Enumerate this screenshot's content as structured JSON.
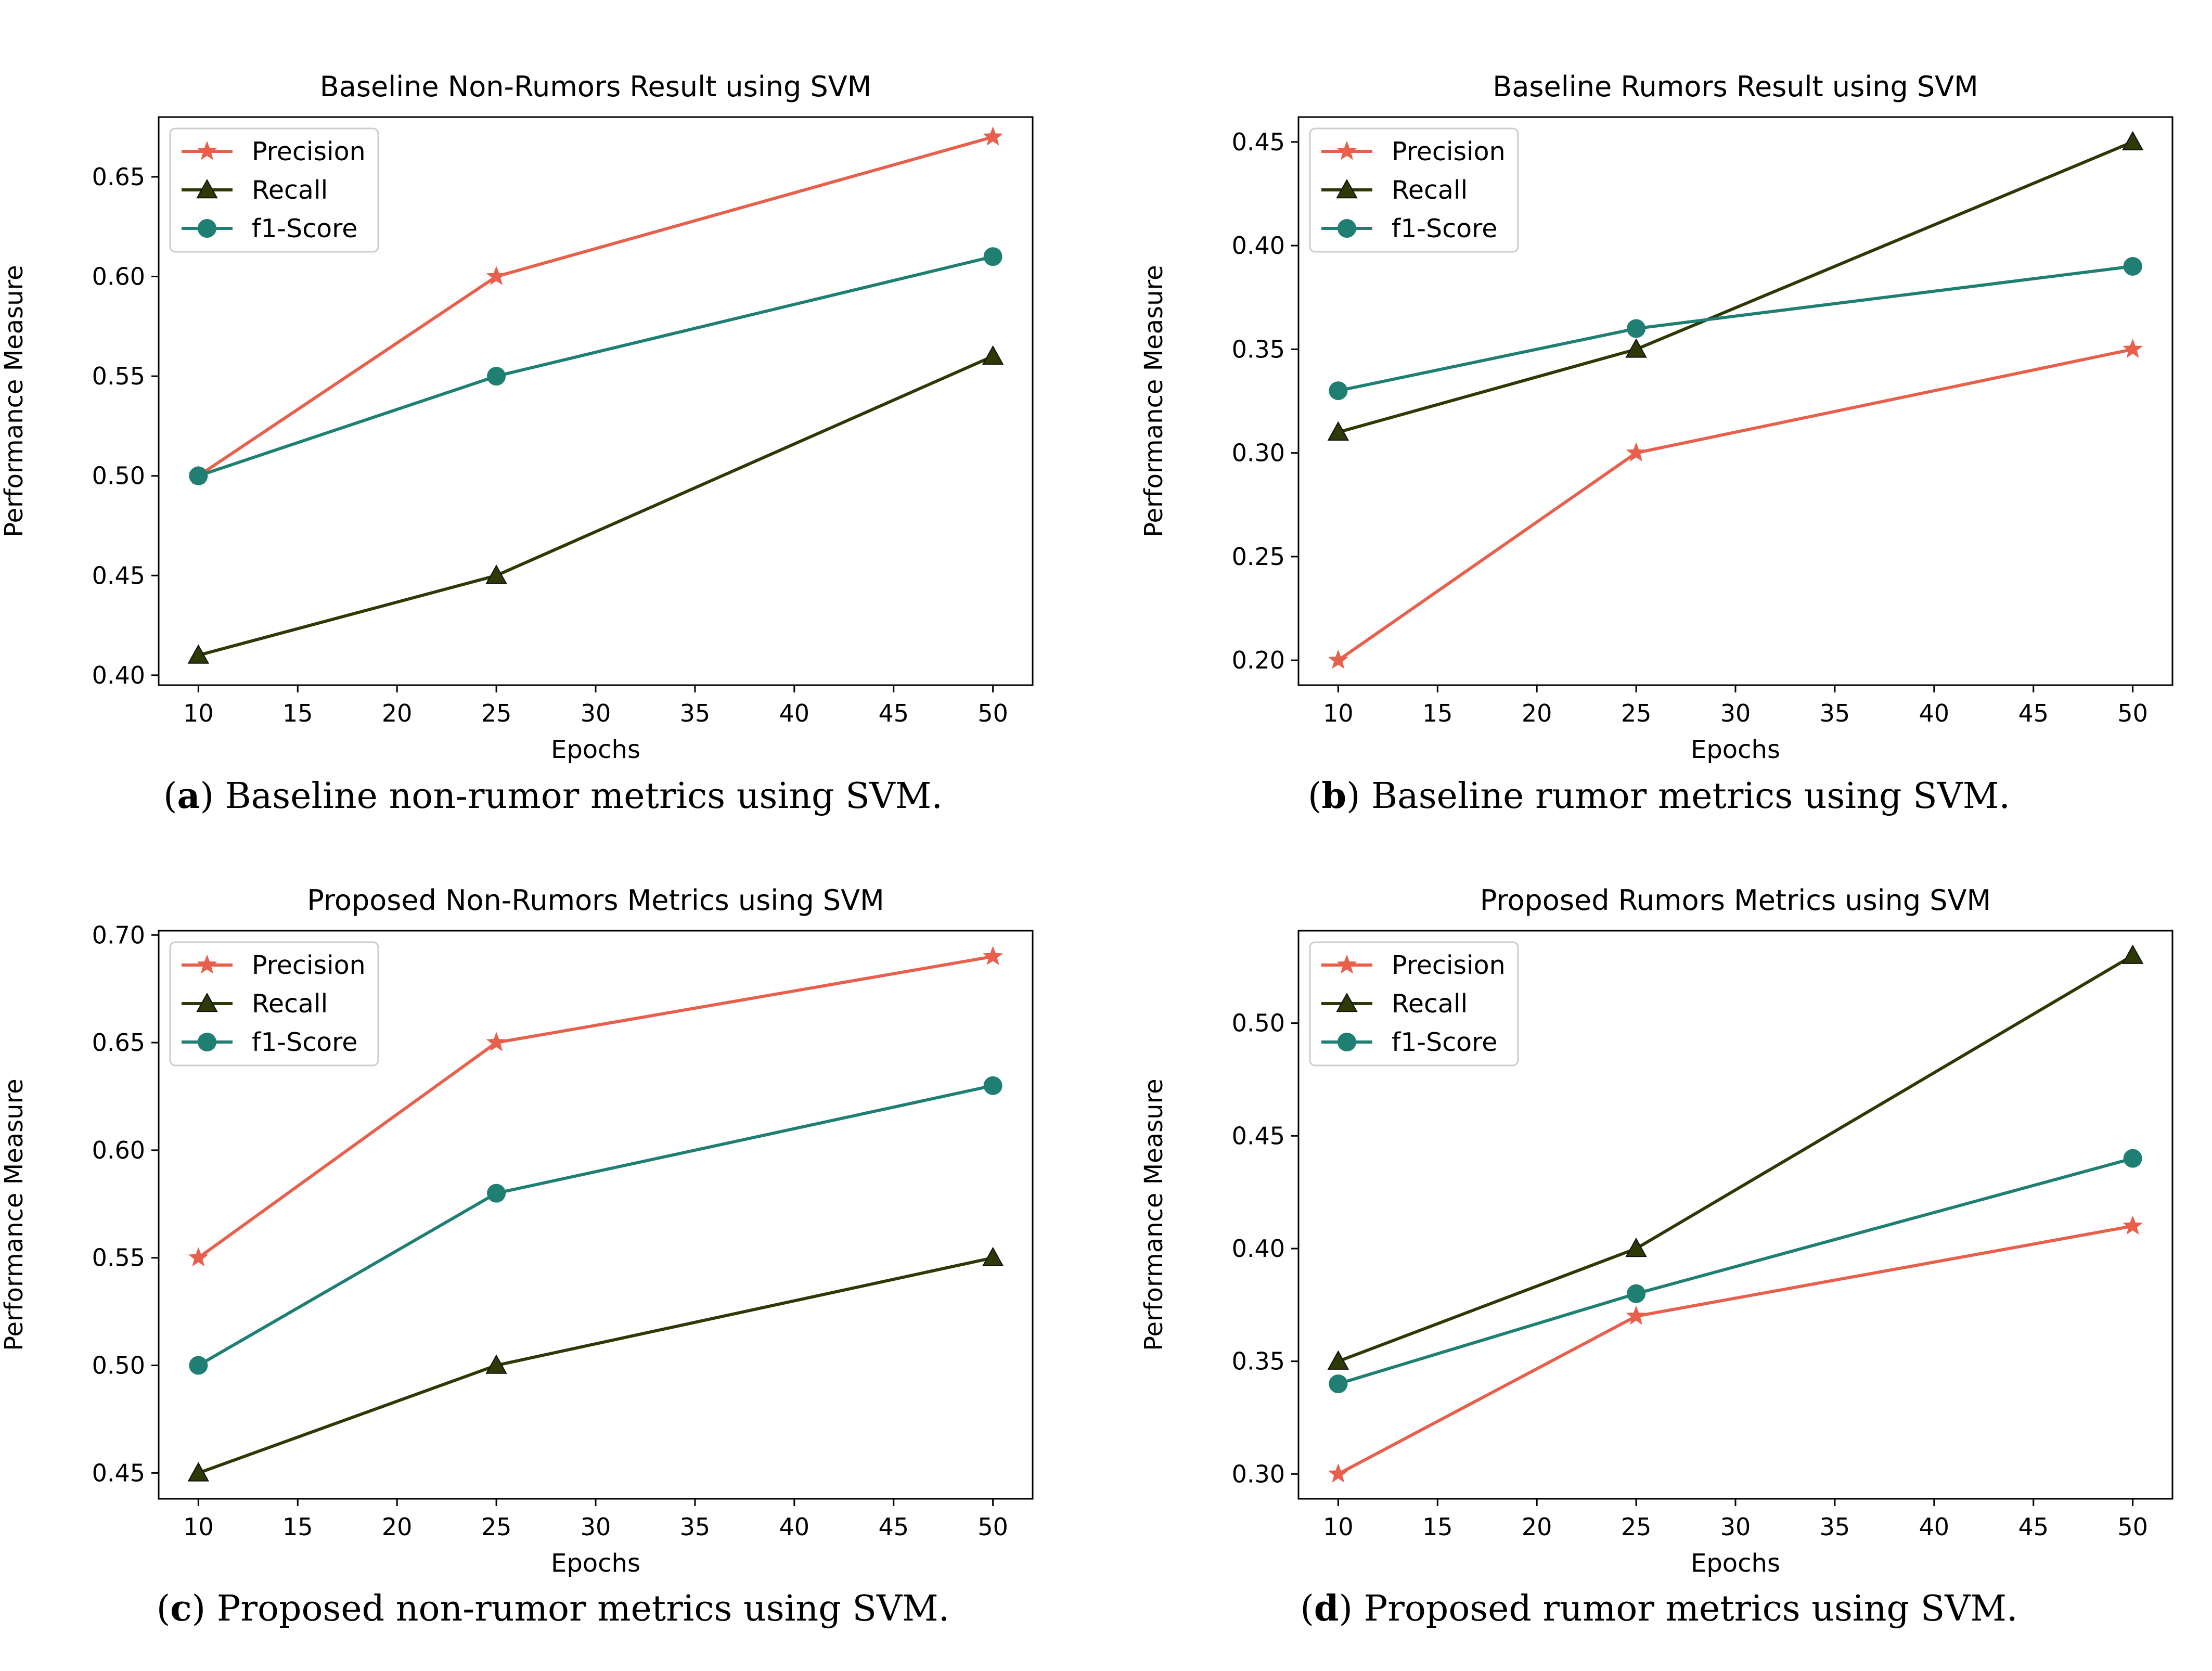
{
  "colors": {
    "precision": "#e8604c",
    "recall": "#2e3a05",
    "f1": "#1e7f72"
  },
  "chart_data": [
    {
      "type": "line",
      "title": "Baseline Non-Rumors Result using SVM",
      "xlabel": "Epochs",
      "ylabel": "Performance Measure",
      "x": [
        10,
        25,
        50
      ],
      "xlim": [
        8,
        52
      ],
      "ylim": [
        0.395,
        0.68
      ],
      "xticks": [
        10,
        15,
        20,
        25,
        30,
        35,
        40,
        45,
        50
      ],
      "yticks": [
        "0.40",
        "0.45",
        "0.50",
        "0.55",
        "0.60",
        "0.65"
      ],
      "legend_position": "top-left",
      "grid": false,
      "series": [
        {
          "name": "Precision",
          "marker": "star",
          "color": "#e8604c",
          "values": [
            0.5,
            0.6,
            0.67
          ]
        },
        {
          "name": "Recall",
          "marker": "triangle",
          "color": "#2e3a05",
          "values": [
            0.41,
            0.45,
            0.56
          ]
        },
        {
          "name": "f1-Score",
          "marker": "circle",
          "color": "#1e7f72",
          "values": [
            0.5,
            0.55,
            0.61
          ]
        }
      ]
    },
    {
      "type": "line",
      "title": "Baseline Rumors Result using SVM",
      "xlabel": "Epochs",
      "ylabel": "Performance Measure",
      "x": [
        10,
        25,
        50
      ],
      "xlim": [
        8,
        52
      ],
      "ylim": [
        0.188,
        0.462
      ],
      "xticks": [
        10,
        15,
        20,
        25,
        30,
        35,
        40,
        45,
        50
      ],
      "yticks": [
        "0.20",
        "0.25",
        "0.30",
        "0.35",
        "0.40",
        "0.45"
      ],
      "legend_position": "top-left",
      "grid": false,
      "series": [
        {
          "name": "Precision",
          "marker": "star",
          "color": "#e8604c",
          "values": [
            0.2,
            0.3,
            0.35
          ]
        },
        {
          "name": "Recall",
          "marker": "triangle",
          "color": "#2e3a05",
          "values": [
            0.31,
            0.35,
            0.45
          ]
        },
        {
          "name": "f1-Score",
          "marker": "circle",
          "color": "#1e7f72",
          "values": [
            0.33,
            0.36,
            0.39
          ]
        }
      ]
    },
    {
      "type": "line",
      "title": "Proposed Non-Rumors Metrics using SVM",
      "xlabel": "Epochs",
      "ylabel": "Performance Measure",
      "x": [
        10,
        25,
        50
      ],
      "xlim": [
        8,
        52
      ],
      "ylim": [
        0.438,
        0.702
      ],
      "xticks": [
        10,
        15,
        20,
        25,
        30,
        35,
        40,
        45,
        50
      ],
      "yticks": [
        "0.45",
        "0.50",
        "0.55",
        "0.60",
        "0.65",
        "0.70"
      ],
      "legend_position": "top-left",
      "grid": false,
      "series": [
        {
          "name": "Precision",
          "marker": "star",
          "color": "#e8604c",
          "values": [
            0.55,
            0.65,
            0.69
          ]
        },
        {
          "name": "Recall",
          "marker": "triangle",
          "color": "#2e3a05",
          "values": [
            0.45,
            0.5,
            0.55
          ]
        },
        {
          "name": "f1-Score",
          "marker": "circle",
          "color": "#1e7f72",
          "values": [
            0.5,
            0.58,
            0.63
          ]
        }
      ]
    },
    {
      "type": "line",
      "title": "Proposed Rumors Metrics using SVM",
      "xlabel": "Epochs",
      "ylabel": "Performance Measure",
      "x": [
        10,
        25,
        50
      ],
      "xlim": [
        8,
        52
      ],
      "ylim": [
        0.289,
        0.541
      ],
      "xticks": [
        10,
        15,
        20,
        25,
        30,
        35,
        40,
        45,
        50
      ],
      "yticks": [
        "0.30",
        "0.35",
        "0.40",
        "0.45",
        "0.50"
      ],
      "legend_position": "top-left",
      "grid": false,
      "series": [
        {
          "name": "Precision",
          "marker": "star",
          "color": "#e8604c",
          "values": [
            0.3,
            0.37,
            0.41
          ]
        },
        {
          "name": "Recall",
          "marker": "triangle",
          "color": "#2e3a05",
          "values": [
            0.35,
            0.4,
            0.53
          ]
        },
        {
          "name": "f1-Score",
          "marker": "circle",
          "color": "#1e7f72",
          "values": [
            0.34,
            0.38,
            0.44
          ]
        }
      ]
    }
  ],
  "captions": [
    {
      "letter": "a",
      "text": " Baseline non-rumor metrics using SVM."
    },
    {
      "letter": "b",
      "text": " Baseline rumor metrics using SVM."
    },
    {
      "letter": "c",
      "text": " Proposed non-rumor metrics using SVM."
    },
    {
      "letter": "d",
      "text": " Proposed rumor metrics using SVM."
    }
  ]
}
